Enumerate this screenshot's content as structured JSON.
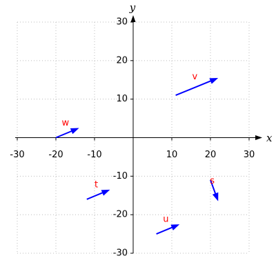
{
  "chart_data": {
    "type": "vector",
    "xlabel": "x",
    "ylabel": "y",
    "xlim": [
      -30,
      30
    ],
    "ylim": [
      -30,
      30
    ],
    "xticks": [
      -30,
      -20,
      -10,
      10,
      20,
      30
    ],
    "yticks": [
      -30,
      -20,
      -10,
      10,
      20,
      30
    ],
    "grid": true,
    "color": "#0000ff",
    "label_color": "#ff0000",
    "series": [
      {
        "name": "v",
        "x": [
          11,
          22
        ],
        "y": [
          11,
          15.5
        ]
      },
      {
        "name": "w",
        "x": [
          -20,
          -14
        ],
        "y": [
          0,
          2.5
        ]
      },
      {
        "name": "t",
        "x": [
          -12,
          -6
        ],
        "y": [
          -16,
          -13.5
        ]
      },
      {
        "name": "u",
        "x": [
          6,
          12
        ],
        "y": [
          -25,
          -22.5
        ]
      },
      {
        "name": "s",
        "x": [
          20,
          22
        ],
        "y": [
          -11,
          -16.5
        ]
      }
    ]
  }
}
